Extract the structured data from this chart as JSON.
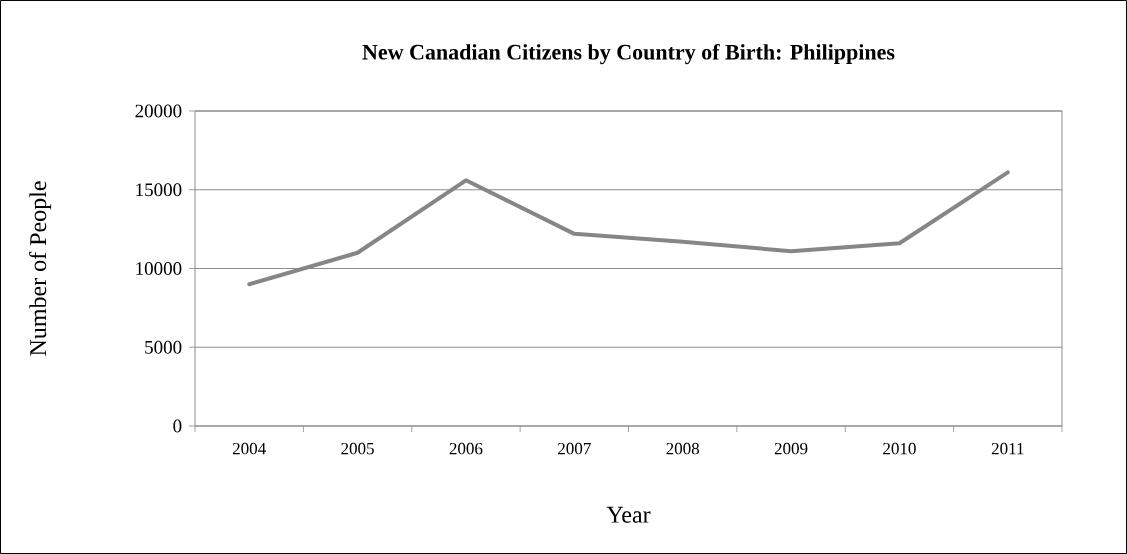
{
  "chart_data": {
    "type": "line",
    "title": "New Canadian Citizens by Country of Birth: Philippines",
    "xlabel": "Year",
    "ylabel": "Number of People",
    "categories": [
      "2004",
      "2005",
      "2006",
      "2007",
      "2008",
      "2009",
      "2010",
      "2011"
    ],
    "series": [
      {
        "color": "#868686",
        "values": [
          9000,
          11000,
          15600,
          12200,
          11700,
          11100,
          11600,
          16100
        ]
      }
    ],
    "ylim": [
      0,
      20000
    ],
    "yticks": [
      0,
      5000,
      10000,
      15000,
      20000
    ],
    "grid": "y",
    "marker": "none",
    "line_style": "solid"
  }
}
